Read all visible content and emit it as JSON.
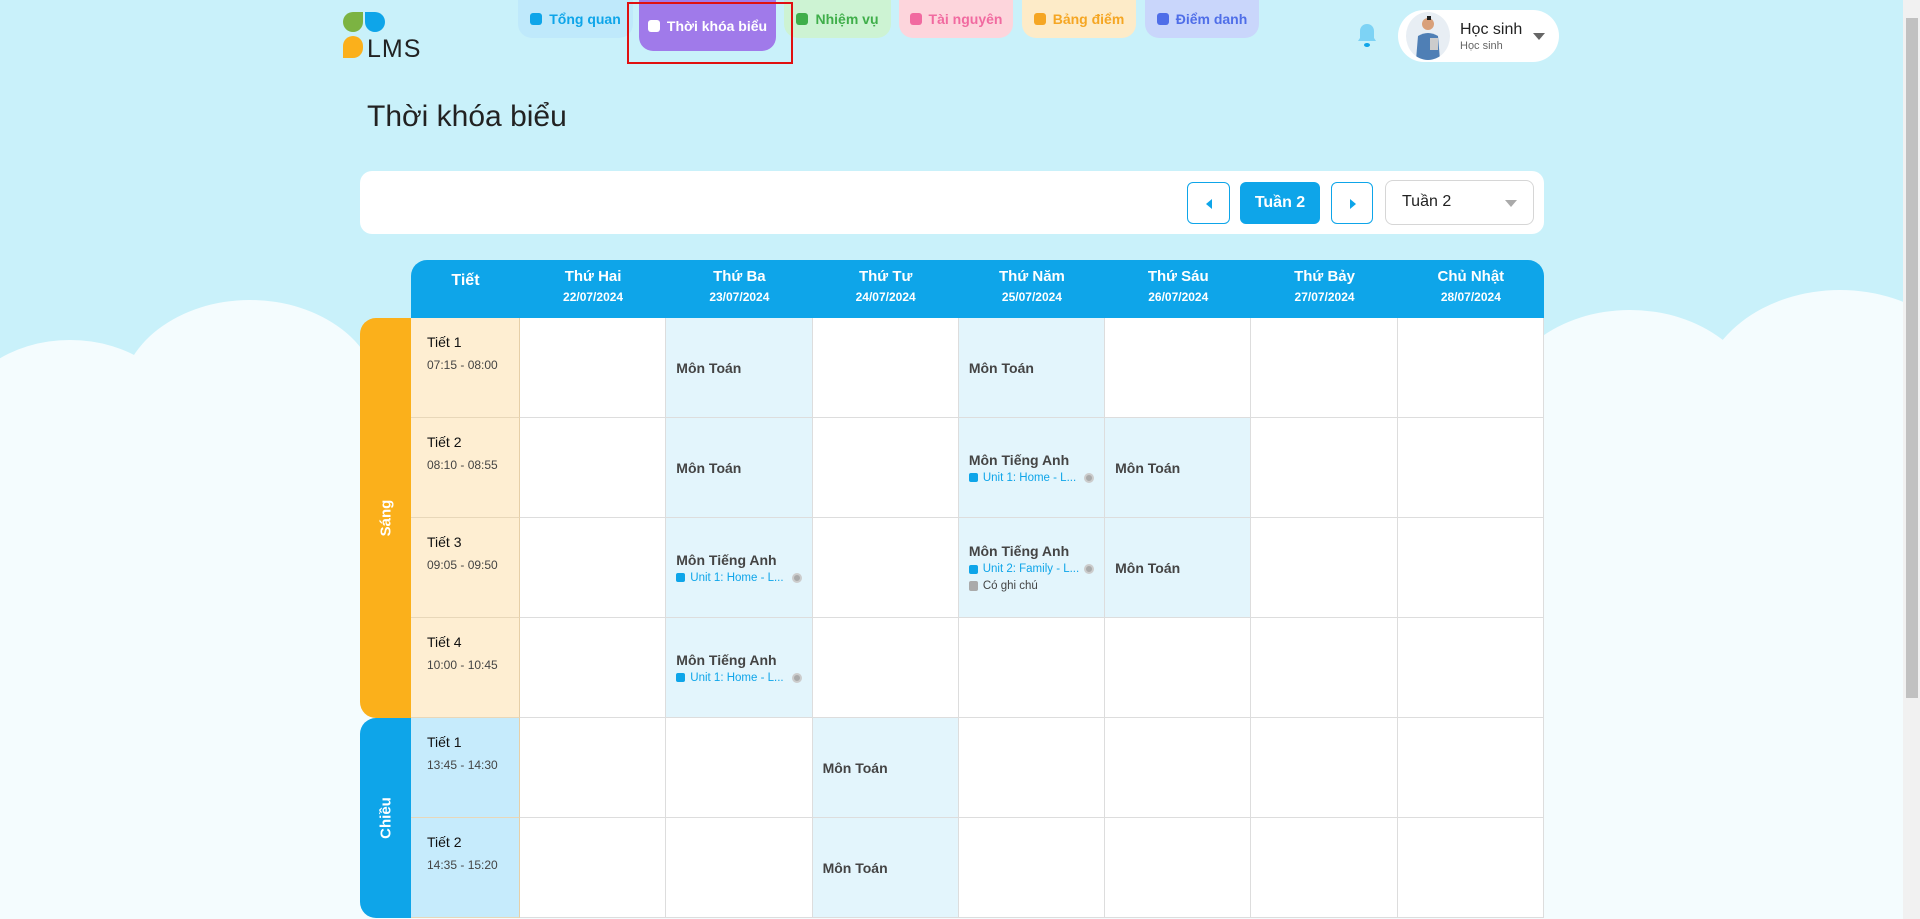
{
  "logo": {
    "text": "LMS"
  },
  "nav": [
    {
      "label": "Tổng quan",
      "icon": "grid-icon",
      "color": "#0ea5e9",
      "bg": "#bfe9fb"
    },
    {
      "label": "Thời khóa biểu",
      "icon": "calendar-icon",
      "color": "#ffffff",
      "bg": "#a07aea",
      "active": true
    },
    {
      "label": "Nhiệm vụ",
      "icon": "book-icon",
      "color": "#3fae4a",
      "bg": "#cdf3d3"
    },
    {
      "label": "Tài nguyên",
      "icon": "folder-icon",
      "color": "#f16aa0",
      "bg": "#fdd5dc"
    },
    {
      "label": "Bảng điểm",
      "icon": "star-file-icon",
      "color": "#f5a623",
      "bg": "#fdebc8"
    },
    {
      "label": "Điểm danh",
      "icon": "badge-icon",
      "color": "#4f6ee8",
      "bg": "#c9d6fb"
    }
  ],
  "user": {
    "name": "Học sinh",
    "role": "Học sinh"
  },
  "page_title": "Thời khóa biểu",
  "toolbar": {
    "current_week": "Tuần 2",
    "week_select": "Tuần 2"
  },
  "header": {
    "tiet": "Tiết",
    "days": [
      {
        "day": "Thứ Hai",
        "date": "22/07/2024"
      },
      {
        "day": "Thứ Ba",
        "date": "23/07/2024"
      },
      {
        "day": "Thứ Tư",
        "date": "24/07/2024"
      },
      {
        "day": "Thứ Năm",
        "date": "25/07/2024"
      },
      {
        "day": "Thứ Sáu",
        "date": "26/07/2024"
      },
      {
        "day": "Thứ Bảy",
        "date": "27/07/2024"
      },
      {
        "day": "Chủ Nhật",
        "date": "28/07/2024"
      }
    ]
  },
  "colors": {
    "accent": "#0ea5e9",
    "morning": "#fbb01b",
    "afternoon": "#0ea5e9"
  },
  "sessions": [
    {
      "label": "Sáng",
      "color": "#fbb01b",
      "period_bg": "#feeed2",
      "periods": [
        {
          "name": "Tiết 1",
          "time": "07:15 - 08:00",
          "cells": [
            null,
            {
              "subject": "Môn Toán"
            },
            null,
            {
              "subject": "Môn Toán"
            },
            null,
            null,
            null
          ]
        },
        {
          "name": "Tiết 2",
          "time": "08:10 - 08:55",
          "cells": [
            null,
            {
              "subject": "Môn Toán"
            },
            null,
            {
              "subject": "Môn Tiếng Anh",
              "lesson": "Unit 1: Home - L..."
            },
            {
              "subject": "Môn Toán"
            },
            null,
            null
          ]
        },
        {
          "name": "Tiết 3",
          "time": "09:05 - 09:50",
          "cells": [
            null,
            {
              "subject": "Môn Tiếng Anh",
              "lesson": "Unit 1: Home - L..."
            },
            null,
            {
              "subject": "Môn Tiếng Anh",
              "lesson": "Unit 2: Family - L...",
              "note": "Có ghi chú"
            },
            {
              "subject": "Môn Toán"
            },
            null,
            null
          ]
        },
        {
          "name": "Tiết 4",
          "time": "10:00 - 10:45",
          "cells": [
            null,
            {
              "subject": "Môn Tiếng Anh",
              "lesson": "Unit 1: Home - L..."
            },
            null,
            null,
            null,
            null,
            null
          ]
        }
      ]
    },
    {
      "label": "Chiều",
      "color": "#0ea5e9",
      "period_bg": "#c6ebfc",
      "periods": [
        {
          "name": "Tiết 1",
          "time": "13:45 - 14:30",
          "cells": [
            null,
            null,
            {
              "subject": "Môn Toán"
            },
            null,
            null,
            null,
            null
          ]
        },
        {
          "name": "Tiết 2",
          "time": "14:35 - 15:20",
          "cells": [
            null,
            null,
            {
              "subject": "Môn Toán"
            },
            null,
            null,
            null,
            null
          ]
        }
      ]
    }
  ]
}
